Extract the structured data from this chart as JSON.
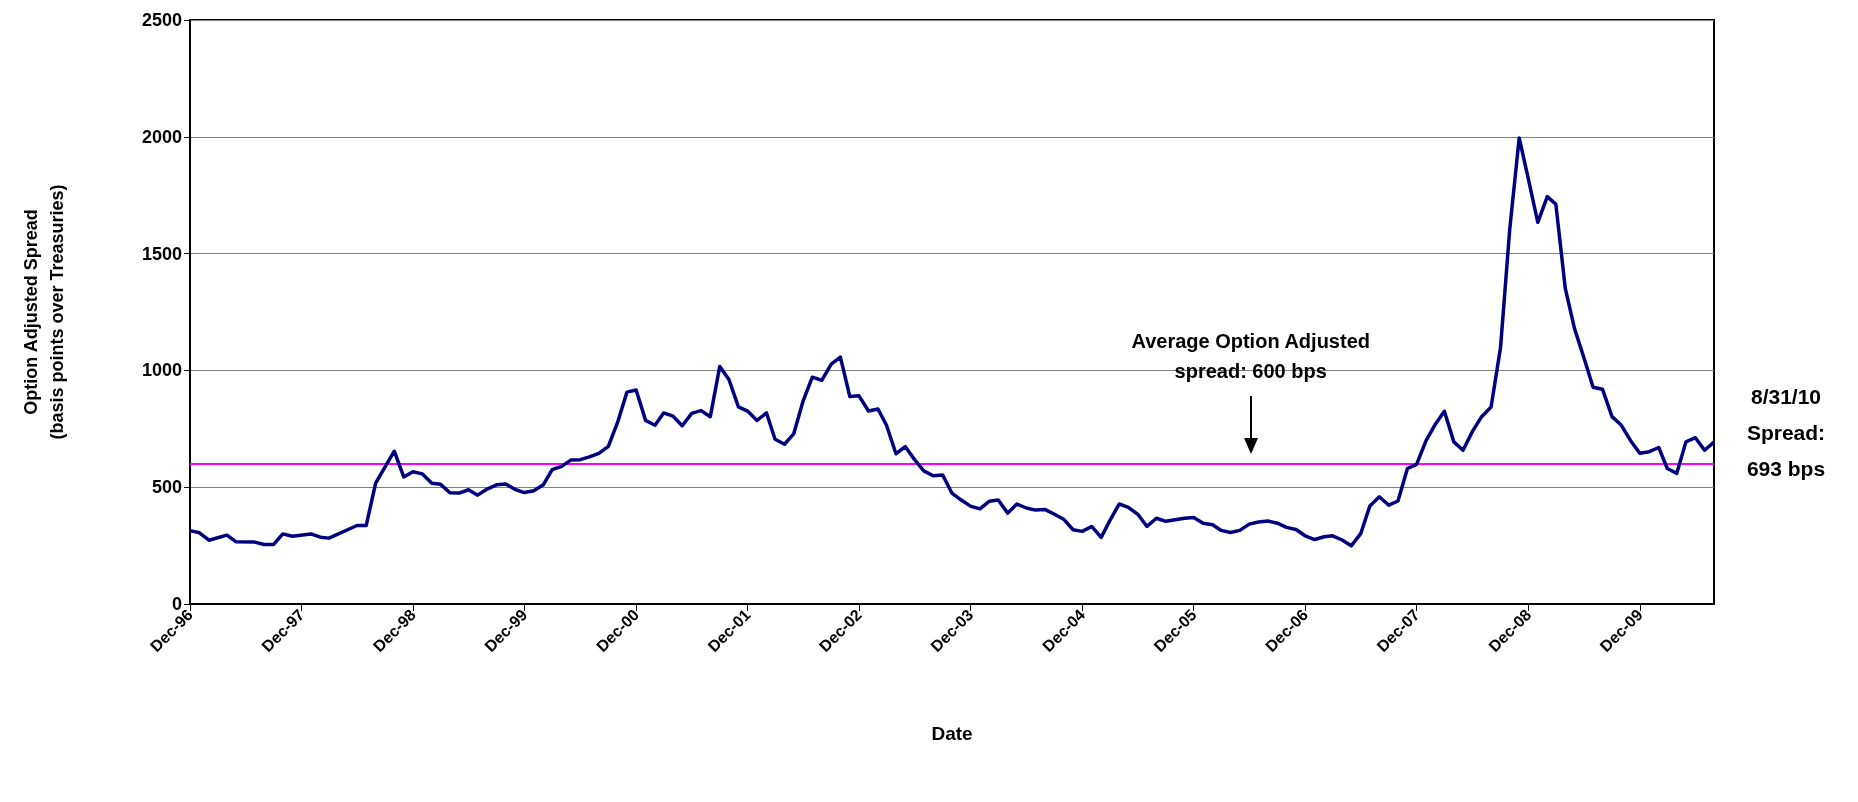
{
  "chart_data": {
    "type": "line",
    "xlabel": "Date",
    "ylabel": "Option Adjusted Spread\n(basis points over Treasuries)",
    "x": [
      "1996-12",
      "1997-01",
      "1997-02",
      "1997-04",
      "1997-05",
      "1997-07",
      "1997-08",
      "1997-09",
      "1997-10",
      "1997-11",
      "1998-01",
      "1998-02",
      "1998-03",
      "1998-06",
      "1998-07",
      "1998-08",
      "1998-10",
      "1998-11",
      "1998-12",
      "1999-01",
      "1999-02",
      "1999-03",
      "1999-04",
      "1999-05",
      "1999-06",
      "1999-07",
      "1999-08",
      "1999-09",
      "1999-10",
      "1999-11",
      "1999-12",
      "2000-01",
      "2000-02",
      "2000-03",
      "2000-04",
      "2000-05",
      "2000-06",
      "2000-07",
      "2000-08",
      "2000-09",
      "2000-10",
      "2000-11",
      "2000-12",
      "2001-01",
      "2001-02",
      "2001-03",
      "2001-04",
      "2001-05",
      "2001-06",
      "2001-07",
      "2001-08",
      "2001-09",
      "2001-10",
      "2001-11",
      "2001-12",
      "2002-01",
      "2002-02",
      "2002-03",
      "2002-04",
      "2002-05",
      "2002-06",
      "2002-07",
      "2002-08",
      "2002-09",
      "2002-10",
      "2002-11",
      "2002-12",
      "2003-01",
      "2003-02",
      "2003-03",
      "2003-04",
      "2003-05",
      "2003-06",
      "2003-07",
      "2003-08",
      "2003-09",
      "2003-10",
      "2003-11",
      "2003-12",
      "2004-01",
      "2004-02",
      "2004-03",
      "2004-04",
      "2004-05",
      "2004-06",
      "2004-07",
      "2004-08",
      "2004-09",
      "2004-10",
      "2004-11",
      "2004-12",
      "2005-01",
      "2005-02",
      "2005-03",
      "2005-04",
      "2005-05",
      "2005-06",
      "2005-07",
      "2005-08",
      "2005-09",
      "2005-10",
      "2005-11",
      "2005-12",
      "2006-01",
      "2006-02",
      "2006-03",
      "2006-04",
      "2006-05",
      "2006-06",
      "2006-07",
      "2006-08",
      "2006-09",
      "2006-10",
      "2006-11",
      "2006-12",
      "2007-01",
      "2007-02",
      "2007-03",
      "2007-04",
      "2007-05",
      "2007-06",
      "2007-07",
      "2007-08",
      "2007-09",
      "2007-10",
      "2007-11",
      "2007-12",
      "2008-01",
      "2008-02",
      "2008-03",
      "2008-04",
      "2008-05",
      "2008-06",
      "2008-07",
      "2008-08",
      "2008-09",
      "2008-10",
      "2008-11",
      "2008-12",
      "2009-01",
      "2009-02",
      "2009-03",
      "2009-04",
      "2009-05",
      "2009-06",
      "2009-07",
      "2009-08",
      "2009-09",
      "2009-10",
      "2009-11",
      "2009-12",
      "2010-01",
      "2010-02",
      "2010-03",
      "2010-04",
      "2010-05",
      "2010-06",
      "2010-07",
      "2010-08"
    ],
    "series": [
      {
        "color": "#000080",
        "values": [
          314,
          305,
          273,
          295,
          266,
          265,
          255,
          255,
          300,
          290,
          300,
          286,
          282,
          336,
          336,
          517,
          654,
          544,
          566,
          557,
          517,
          513,
          476,
          475,
          489,
          466,
          492,
          510,
          514,
          490,
          477,
          485,
          510,
          575,
          589,
          616,
          618,
          630,
          645,
          675,
          776,
          907,
          916,
          786,
          765,
          818,
          804,
          763,
          816,
          828,
          802,
          1017,
          961,
          844,
          826,
          786,
          818,
          705,
          684,
          728,
          870,
          971,
          957,
          1027,
          1057,
          888,
          891,
          826,
          835,
          765,
          643,
          674,
          618,
          570,
          549,
          552,
          475,
          445,
          419,
          407,
          440,
          445,
          389,
          428,
          411,
          402,
          405,
          384,
          363,
          318,
          311,
          332,
          285,
          356,
          428,
          414,
          384,
          332,
          367,
          354,
          361,
          367,
          370,
          346,
          339,
          315,
          306,
          315,
          342,
          351,
          355,
          346,
          328,
          319,
          292,
          276,
          288,
          292,
          274,
          249,
          301,
          420,
          459,
          423,
          441,
          580,
          598,
          699,
          771,
          825,
          694,
          658,
          739,
          802,
          843,
          1099,
          1604,
          1995,
          1820,
          1634,
          1744,
          1712,
          1351,
          1180,
          1054,
          928,
          919,
          802,
          766,
          699,
          645,
          652,
          670,
          580,
          559,
          694,
          712,
          658,
          693
        ]
      }
    ],
    "xlim": [
      "1996-12",
      "2010-08"
    ],
    "xticks": [
      {
        "value": "1996-12",
        "label": "Dec-96"
      },
      {
        "value": "1997-12",
        "label": "Dec-97"
      },
      {
        "value": "1998-12",
        "label": "Dec-98"
      },
      {
        "value": "1999-12",
        "label": "Dec-99"
      },
      {
        "value": "2000-12",
        "label": "Dec-00"
      },
      {
        "value": "2001-12",
        "label": "Dec-01"
      },
      {
        "value": "2002-12",
        "label": "Dec-02"
      },
      {
        "value": "2003-12",
        "label": "Dec-03"
      },
      {
        "value": "2004-12",
        "label": "Dec-04"
      },
      {
        "value": "2005-12",
        "label": "Dec-05"
      },
      {
        "value": "2006-12",
        "label": "Dec-06"
      },
      {
        "value": "2007-12",
        "label": "Dec-07"
      },
      {
        "value": "2008-12",
        "label": "Dec-08"
      },
      {
        "value": "2009-12",
        "label": "Dec-09"
      }
    ],
    "ylim": [
      0,
      2500
    ],
    "yticks": [
      0,
      500,
      1000,
      1500,
      2000,
      2500
    ],
    "grid": "y",
    "ref_lines": [
      {
        "axis": "y",
        "value": 600,
        "color": "#ff00ff"
      }
    ],
    "annotations": [
      "Average Option Adjusted\nspread: 600 bps",
      {
        "text": "8/31/10\nSpread:\n693 bps",
        "x": "2010-08",
        "y": 693
      }
    ]
  }
}
